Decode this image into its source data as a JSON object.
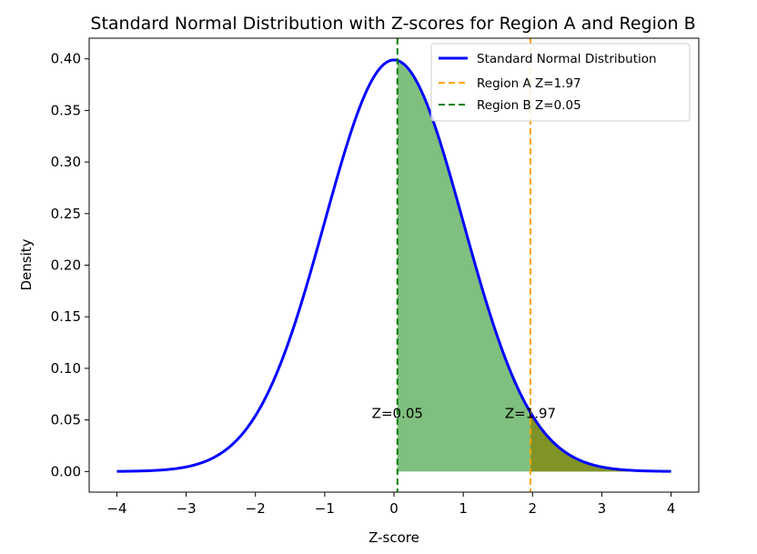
{
  "chart_data": {
    "type": "line",
    "title": "Standard Normal Distribution with Z-scores for Region A and Region B",
    "xlabel": "Z-score",
    "ylabel": "Density",
    "xlim": [
      -4.4,
      4.4
    ],
    "ylim": [
      -0.02,
      0.42
    ],
    "x_ticks": [
      -4,
      -3,
      -2,
      -1,
      0,
      1,
      2,
      3,
      4
    ],
    "x_tick_labels": [
      "−4",
      "−3",
      "−2",
      "−1",
      "0",
      "1",
      "2",
      "3",
      "4"
    ],
    "y_ticks": [
      0.0,
      0.05,
      0.1,
      0.15,
      0.2,
      0.25,
      0.3,
      0.35,
      0.4
    ],
    "y_tick_labels": [
      "0.00",
      "0.05",
      "0.10",
      "0.15",
      "0.20",
      "0.25",
      "0.30",
      "0.35",
      "0.40"
    ],
    "grid": false,
    "legend_position": "top-right",
    "series": [
      {
        "name": "Standard Normal Distribution",
        "color": "#0000ff",
        "x": [
          -4.0,
          -3.5,
          -3.0,
          -2.5,
          -2.0,
          -1.5,
          -1.0,
          -0.5,
          0.0,
          0.5,
          1.0,
          1.5,
          2.0,
          2.5,
          3.0,
          3.5,
          4.0
        ],
        "values": [
          0.0001,
          0.0009,
          0.0044,
          0.0175,
          0.054,
          0.1295,
          0.242,
          0.3521,
          0.3989,
          0.3521,
          0.242,
          0.1295,
          0.054,
          0.0175,
          0.0044,
          0.0009,
          0.0001
        ]
      }
    ],
    "reference_lines": [
      {
        "name": "Region A Z=1.97",
        "x": 1.97,
        "color": "#ffa500",
        "style": "dashed"
      },
      {
        "name": "Region B Z=0.05",
        "x": 0.05,
        "color": "#008000",
        "style": "dashed"
      }
    ],
    "shaded_regions": [
      {
        "from": 0.05,
        "to": 4.0,
        "color": "#008000",
        "opacity": 0.5
      },
      {
        "from": 1.97,
        "to": 4.0,
        "color": "#808000",
        "opacity": 0.7
      }
    ],
    "annotations": [
      {
        "text": "Z=0.05",
        "x": 0.05,
        "y": 0.05
      },
      {
        "text": "Z=1.97",
        "x": 1.97,
        "y": 0.05
      }
    ]
  }
}
